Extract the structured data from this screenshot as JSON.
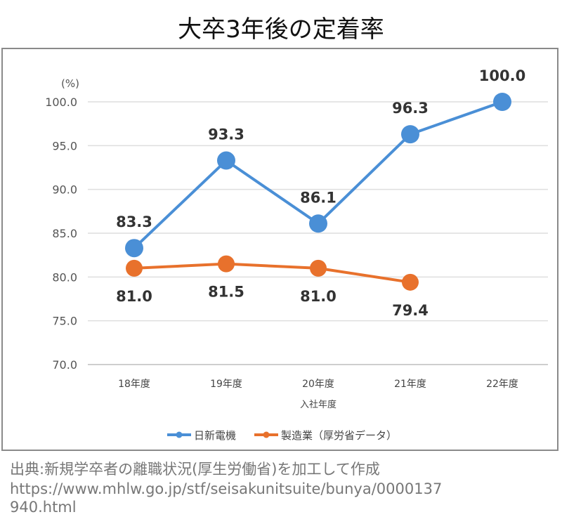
{
  "chart_data": {
    "type": "line",
    "title": "大卒3年後の定着率",
    "xlabel": "入社年度",
    "ylabel": "(%)",
    "ylim": [
      70,
      100
    ],
    "yticks": [
      "70.0",
      "75.0",
      "80.0",
      "85.0",
      "90.0",
      "95.0",
      "100.0"
    ],
    "categories": [
      "18年度",
      "19年度",
      "20年度",
      "21年度",
      "22年度"
    ],
    "grid": true,
    "legend": "bottom",
    "series": [
      {
        "name": "日新電機",
        "color": "#4a8fd6",
        "values": [
          83.3,
          93.3,
          86.1,
          96.3,
          100.0
        ],
        "labels": [
          "83.3",
          "93.3",
          "86.1",
          "96.3",
          "100.0"
        ],
        "label_pos": "above"
      },
      {
        "name": "製造業（厚労省データ）",
        "color": "#e8712c",
        "values": [
          81.0,
          81.5,
          81.0,
          79.4,
          null
        ],
        "labels": [
          "81.0",
          "81.5",
          "81.0",
          "79.4",
          null
        ],
        "label_pos": "below"
      }
    ]
  },
  "source": {
    "line1": "出典:新規学卒者の離職状況(厚生労働省)を加工して作成",
    "line2": "https://www.mhlw.go.jp/stf/seisakunitsuite/bunya/0000137",
    "line3": "940.html"
  }
}
